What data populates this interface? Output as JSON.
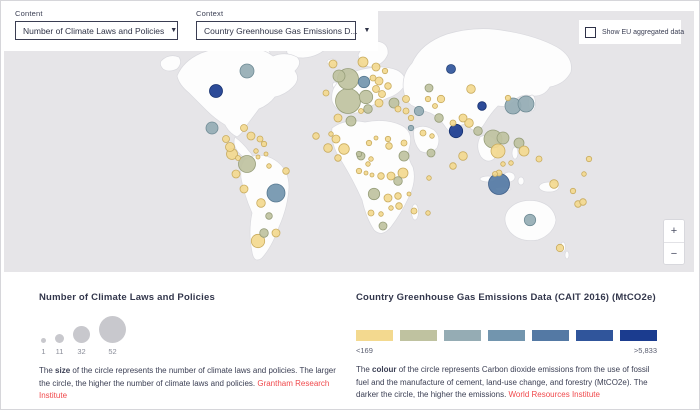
{
  "header": {
    "content_label": "Content",
    "content_value": "Number of Climate Laws and Policies",
    "context_label": "Context",
    "context_value": "Country Greenhouse Gas Emissions D...",
    "dropdown_caret": "▼",
    "checkbox_label": "Show EU aggregated data"
  },
  "map": {
    "zoom_in": "+",
    "zoom_out": "−",
    "palette": [
      "#F3D98F",
      "#BFC2A0",
      "#95ACB4",
      "#7295AE",
      "#5479A4",
      "#30559B",
      "#1B3C8F"
    ],
    "stroke_palette": [
      "#C9AC5F",
      "#969D79",
      "#6F8B95",
      "#567890",
      "#40608A",
      "#254379",
      "#15306F"
    ],
    "circles": [
      [
        246,
        70,
        7,
        2
      ],
      [
        215,
        90,
        6.5,
        6
      ],
      [
        211,
        127,
        6,
        2
      ],
      [
        225,
        138,
        3.5,
        0
      ],
      [
        229,
        146,
        4.5,
        0
      ],
      [
        231,
        153,
        5.5,
        0
      ],
      [
        237,
        157,
        2.5,
        0
      ],
      [
        243,
        127,
        3.5,
        0
      ],
      [
        250,
        135,
        4,
        0
      ],
      [
        259,
        138,
        3,
        0
      ],
      [
        263,
        143,
        2.7,
        0
      ],
      [
        255,
        150,
        2.3,
        0
      ],
      [
        246,
        163,
        8.5,
        1
      ],
      [
        257,
        156,
        2,
        0
      ],
      [
        265,
        153,
        2,
        0
      ],
      [
        268,
        165,
        2.3,
        0
      ],
      [
        285,
        170,
        3.3,
        0
      ],
      [
        235,
        173,
        4,
        0
      ],
      [
        243,
        188,
        4,
        0
      ],
      [
        275,
        192,
        9,
        3
      ],
      [
        260,
        202,
        4.3,
        0
      ],
      [
        268,
        215,
        3.3,
        1
      ],
      [
        263,
        232,
        4.3,
        1
      ],
      [
        257,
        240,
        6.7,
        0
      ],
      [
        275,
        232,
        4,
        0
      ],
      [
        332,
        63,
        4,
        0
      ],
      [
        362,
        61,
        5,
        0
      ],
      [
        375,
        66,
        4,
        0
      ],
      [
        384,
        70,
        2.7,
        0
      ],
      [
        347,
        78,
        10.5,
        1
      ],
      [
        338,
        75,
        6,
        1
      ],
      [
        363,
        81,
        5.7,
        3
      ],
      [
        347,
        100,
        12.5,
        1
      ],
      [
        365,
        96,
        6.7,
        1
      ],
      [
        372,
        77,
        3,
        0
      ],
      [
        378,
        80,
        4,
        0
      ],
      [
        387,
        85,
        3.3,
        0
      ],
      [
        375,
        88,
        3.5,
        0
      ],
      [
        381,
        93,
        3.5,
        0
      ],
      [
        367,
        108,
        4.3,
        1
      ],
      [
        378,
        102,
        4,
        0
      ],
      [
        393,
        102,
        5,
        1
      ],
      [
        405,
        98,
        3.5,
        0
      ],
      [
        397,
        108,
        3,
        0
      ],
      [
        405,
        110,
        3,
        0
      ],
      [
        360,
        110,
        2.5,
        0
      ],
      [
        350,
        120,
        5,
        1
      ],
      [
        337,
        117,
        4,
        0
      ],
      [
        325,
        92,
        3,
        0
      ],
      [
        428,
        87,
        4,
        1
      ],
      [
        450,
        68,
        4.5,
        5
      ],
      [
        470,
        88,
        4.3,
        0
      ],
      [
        440,
        98,
        3.7,
        0
      ],
      [
        427,
        98,
        2.7,
        0
      ],
      [
        434,
        105,
        2.5,
        0
      ],
      [
        418,
        110,
        4.7,
        2
      ],
      [
        410,
        117,
        2.7,
        0
      ],
      [
        410,
        127,
        2.7,
        2
      ],
      [
        422,
        132,
        3,
        0
      ],
      [
        431,
        135,
        2.3,
        0
      ],
      [
        438,
        117,
        4.3,
        1
      ],
      [
        430,
        152,
        4,
        1
      ],
      [
        403,
        142,
        3,
        0
      ],
      [
        387,
        138,
        2.7,
        0
      ],
      [
        375,
        137,
        2,
        0
      ],
      [
        368,
        142,
        2.7,
        0
      ],
      [
        315,
        135,
        3.3,
        0
      ],
      [
        330,
        133,
        2.3,
        0
      ],
      [
        335,
        138,
        4,
        0
      ],
      [
        343,
        148,
        5.3,
        0
      ],
      [
        327,
        147,
        4.3,
        0
      ],
      [
        337,
        157,
        3.3,
        0
      ],
      [
        358,
        153,
        2.7,
        1
      ],
      [
        370,
        158,
        2.3,
        0
      ],
      [
        360,
        155,
        4,
        1
      ],
      [
        367,
        163,
        2.3,
        0
      ],
      [
        358,
        170,
        2.7,
        0
      ],
      [
        365,
        172,
        2,
        0
      ],
      [
        371,
        174,
        2,
        0
      ],
      [
        380,
        175,
        3.3,
        0
      ],
      [
        390,
        175,
        4,
        0
      ],
      [
        402,
        172,
        5,
        0
      ],
      [
        403,
        155,
        5,
        1
      ],
      [
        388,
        145,
        3.3,
        0
      ],
      [
        397,
        180,
        4.3,
        1
      ],
      [
        373,
        193,
        5.7,
        1
      ],
      [
        387,
        197,
        4,
        0
      ],
      [
        397,
        195,
        3.3,
        0
      ],
      [
        408,
        193,
        2,
        0
      ],
      [
        398,
        205,
        3.3,
        0
      ],
      [
        390,
        207,
        2.3,
        0
      ],
      [
        370,
        212,
        3,
        0
      ],
      [
        380,
        213,
        2.3,
        0
      ],
      [
        413,
        210,
        3,
        0
      ],
      [
        382,
        225,
        4,
        1
      ],
      [
        428,
        177,
        2.3,
        0
      ],
      [
        452,
        165,
        3.3,
        0
      ],
      [
        462,
        155,
        4.3,
        0
      ],
      [
        427,
        212,
        2.3,
        0
      ],
      [
        455,
        130,
        6.7,
        6
      ],
      [
        452,
        122,
        3,
        0
      ],
      [
        462,
        117,
        4,
        0
      ],
      [
        468,
        122,
        4.3,
        0
      ],
      [
        477,
        130,
        4.3,
        1
      ],
      [
        481,
        105,
        4.3,
        6
      ],
      [
        492,
        138,
        9,
        1
      ],
      [
        502,
        137,
        6,
        1
      ],
      [
        518,
        142,
        5,
        1
      ],
      [
        512,
        105,
        8,
        2
      ],
      [
        525,
        103,
        8,
        2
      ],
      [
        507,
        97,
        2.7,
        0
      ],
      [
        497,
        150,
        7,
        0
      ],
      [
        523,
        150,
        5,
        0
      ],
      [
        538,
        158,
        3,
        0
      ],
      [
        588,
        158,
        2.7,
        0
      ],
      [
        502,
        163,
        2.3,
        0
      ],
      [
        510,
        162,
        2.3,
        0
      ],
      [
        498,
        172,
        3,
        0
      ],
      [
        494,
        173,
        2.5,
        0
      ],
      [
        498,
        183,
        10.5,
        4
      ],
      [
        553,
        183,
        4.3,
        0
      ],
      [
        572,
        190,
        2.7,
        0
      ],
      [
        583,
        173,
        2.3,
        0
      ],
      [
        577,
        203,
        3.3,
        0
      ],
      [
        582,
        201,
        3.3,
        0
      ],
      [
        529,
        219,
        5.7,
        2
      ],
      [
        559,
        247,
        3.7,
        0
      ]
    ]
  },
  "legend_size": {
    "title": "Number of Climate Laws and Policies",
    "items": [
      {
        "label": "1",
        "r": 2.5
      },
      {
        "label": "11",
        "r": 4.5
      },
      {
        "label": "32",
        "r": 8.5
      },
      {
        "label": "52",
        "r": 13.5
      }
    ],
    "desc_pre": "The ",
    "desc_bold": "size",
    "desc_post": " of the circle represents the number of climate laws and policies. The larger the circle, the higher the number of climate laws and policies.  ",
    "link": "Grantham Research Institute"
  },
  "legend_color": {
    "title": "Country Greenhouse Gas Emissions Data (CAIT 2016) (MtCO2e)",
    "swatches": [
      "#F3D98F",
      "#BFC2A0",
      "#95ACB4",
      "#7295AE",
      "#5479A4",
      "#30559B",
      "#1B3C8F"
    ],
    "min_label": "<169",
    "max_label": ">5,833",
    "desc_pre": "The ",
    "desc_bold": "colour",
    "desc_post": " of the circle represents Carbon dioxide emissions from the use of fossil fuel and the manufacture of cement, land-use change, and forestry (MtCO2e). The darker the circle, the higher the emissions.  ",
    "link": "World Resources Institute"
  },
  "colors": {
    "link_red": "#F0494C",
    "text_dark": "#383D54",
    "map_bg": "#E6E5E8",
    "control_border": "#3A3D52"
  }
}
